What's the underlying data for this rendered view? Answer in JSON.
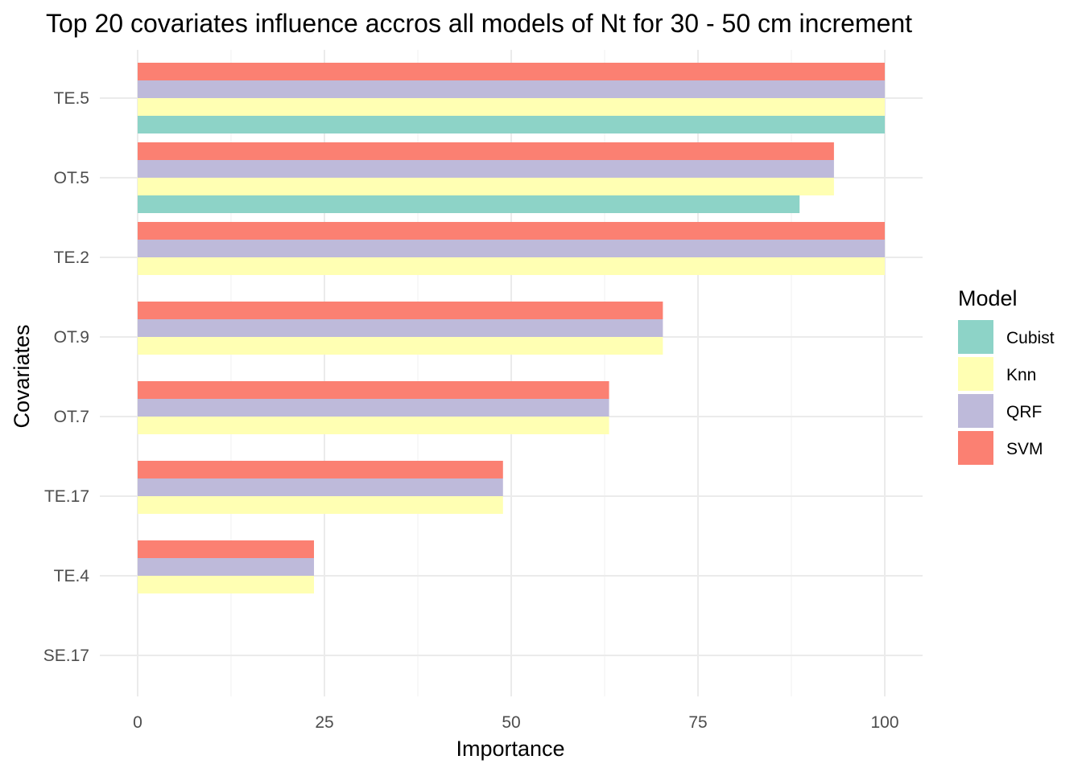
{
  "chart_data": {
    "type": "bar",
    "orientation": "horizontal",
    "title": "Top 20 covariates influence accros all models of Nt for 30 - 50 cm increment",
    "xlabel": "Importance",
    "ylabel": "Covariates",
    "xlim": [
      0,
      100
    ],
    "x_ticks": [
      "0",
      "25",
      "50",
      "75",
      "100"
    ],
    "categories": [
      "TE.5",
      "OT.5",
      "TE.2",
      "OT.9",
      "OT.7",
      "TE.17",
      "TE.4",
      "SE.17"
    ],
    "series": [
      {
        "name": "Cubist",
        "color": "#8DD3C7",
        "values": [
          100,
          88.6,
          null,
          null,
          null,
          null,
          null,
          null
        ]
      },
      {
        "name": "Knn",
        "color": "#FFFFB3",
        "values": [
          100,
          93.2,
          100,
          70.3,
          63.1,
          48.9,
          23.6,
          null
        ]
      },
      {
        "name": "QRF",
        "color": "#BEBADA",
        "values": [
          100,
          93.2,
          100,
          70.3,
          63.1,
          48.9,
          23.6,
          null
        ]
      },
      {
        "name": "SVM",
        "color": "#FB8072",
        "values": [
          100,
          93.2,
          100,
          70.3,
          63.1,
          48.9,
          23.6,
          null
        ]
      }
    ],
    "grid": true,
    "legend": {
      "title": "Model",
      "position": "right"
    }
  }
}
